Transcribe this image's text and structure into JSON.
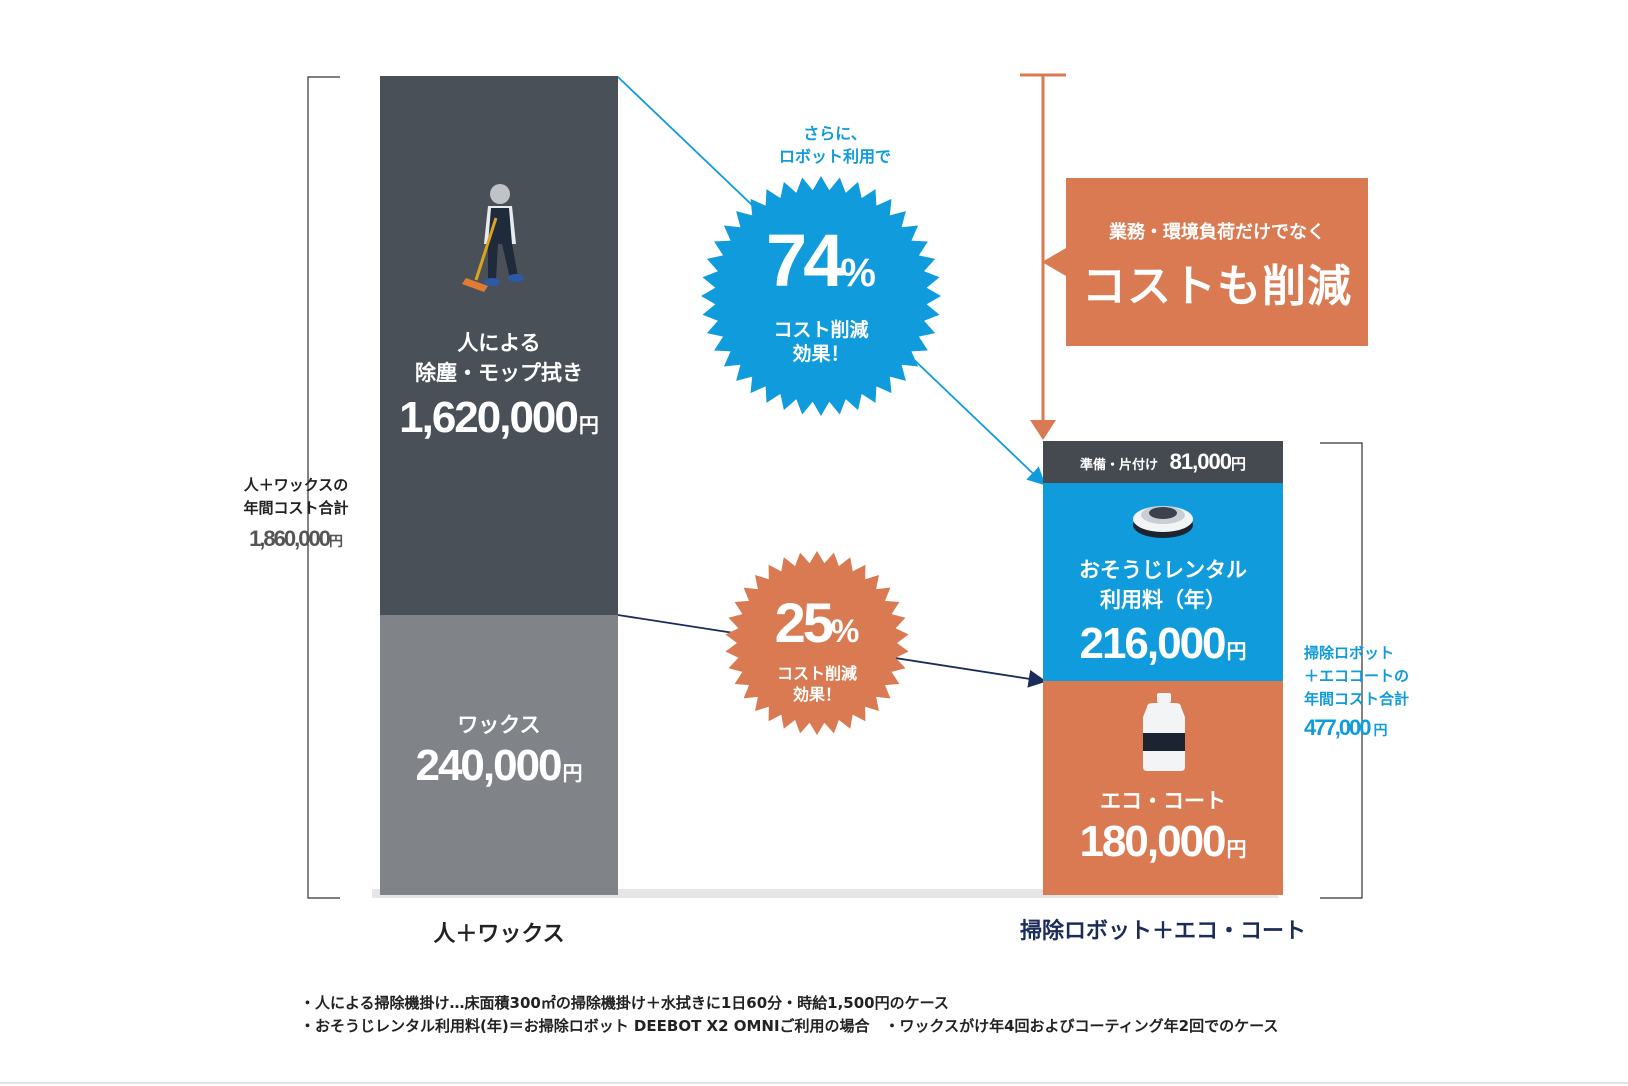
{
  "chart_data": {
    "type": "bar",
    "stacked": true,
    "categories": [
      "人＋ワックス",
      "掃除ロボット＋エコ・コート"
    ],
    "series": [
      {
        "name": "人による除塵・モップ拭き",
        "values": [
          1620000,
          null
        ],
        "color": "#4a5058"
      },
      {
        "name": "ワックス",
        "values": [
          240000,
          null
        ],
        "color": "#808489"
      },
      {
        "name": "エコ・コート",
        "values": [
          null,
          180000
        ],
        "color": "#d97a52"
      },
      {
        "name": "おそうじレンタル利用料（年）",
        "values": [
          null,
          216000
        ],
        "color": "#109bdc"
      },
      {
        "name": "準備・片付け",
        "values": [
          null,
          81000
        ],
        "color": "#454a51"
      }
    ],
    "totals": [
      1860000,
      477000
    ],
    "scale_max": 1860000
  },
  "left": {
    "category": "人＋ワックス",
    "total_label_1": "人＋ワックスの",
    "total_label_2": "年間コスト合計",
    "total_value": "1,860,000",
    "labor_label_1": "人による",
    "labor_label_2": "除塵・モップ拭き",
    "labor_value": "1,620,000",
    "wax_label": "ワックス",
    "wax_value": "240,000"
  },
  "right": {
    "category": "掃除ロボット＋エコ・コート",
    "prep_label": "準備・片付け",
    "prep_value": "81,000",
    "rental_label_1": "おそうじレンタル",
    "rental_label_2": "利用料（年）",
    "rental_value": "216,000",
    "eco_label": "エコ・コート",
    "eco_value": "180,000",
    "total_label_1": "掃除ロボット",
    "total_label_2": "＋エココートの",
    "total_label_3": "年間コスト合計",
    "total_value": "477,000"
  },
  "yen": "円",
  "badge_74": {
    "intro_1": "さらに、",
    "intro_2": "ロボット利用で",
    "value": "74",
    "unit": "%",
    "text_1": "コスト削減",
    "text_2": "効果！"
  },
  "badge_25": {
    "value": "25",
    "unit": "%",
    "text_1": "コスト削減",
    "text_2": "効果！"
  },
  "callout": {
    "small": "業務・環境負荷だけでなく",
    "big": "コストも削減"
  },
  "footnotes": [
    "・人による掃除機掛け…床面積300㎡の掃除機掛け＋水拭きに1日60分・時給1,500円のケース",
    "・おそうじレンタル利用料(年)＝お掃除ロボット DEEBOT X2 OMNIご利用の場合　・ワックスがけ年4回およびコーティング年2回でのケース"
  ],
  "colors": {
    "dark": "#4a5058",
    "gray": "#808489",
    "blue": "#109bdc",
    "orange": "#d97a52",
    "navy": "#1c2c5a",
    "prep": "#454a51"
  }
}
